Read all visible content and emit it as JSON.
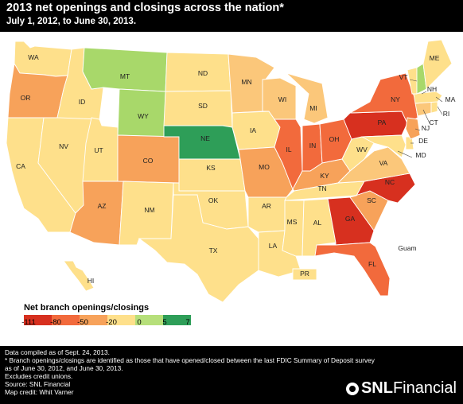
{
  "title": "2013 net openings and closings across the nation*",
  "subtitle": "July 1, 2012, to June 30, 2013.",
  "legend": {
    "title": "Net branch openings/closings",
    "ticks": [
      "-111",
      "-80",
      "-50",
      "-20",
      "0",
      "5",
      "7"
    ],
    "colors": [
      "#d7301f",
      "#f26a3c",
      "#f7a25a",
      "#fee08b",
      "#b6df7a",
      "#2e9e58"
    ]
  },
  "colors": {
    "dark_red": "#d7301f",
    "red_orange": "#f26a3c",
    "orange": "#f7a25a",
    "light_orange": "#fbc77a",
    "yellow": "#fee08b",
    "light_green": "#a8d86a",
    "green": "#2e9e58",
    "border": "#ffffff"
  },
  "states": {
    "WA": "WA",
    "OR": "OR",
    "CA": "CA",
    "NV": "NV",
    "ID": "ID",
    "MT": "MT",
    "WY": "WY",
    "UT": "UT",
    "AZ": "AZ",
    "CO": "CO",
    "NM": "NM",
    "ND": "ND",
    "SD": "SD",
    "NE": "NE",
    "KS": "KS",
    "OK": "OK",
    "TX": "TX",
    "MN": "MN",
    "IA": "IA",
    "MO": "MO",
    "AR": "AR",
    "LA": "LA",
    "WI": "WI",
    "IL": "IL",
    "MI": "MI",
    "IN": "IN",
    "OH": "OH",
    "KY": "KY",
    "TN": "TN",
    "MS": "MS",
    "AL": "AL",
    "GA": "GA",
    "FL": "FL",
    "SC": "SC",
    "NC": "NC",
    "VA": "VA",
    "WV": "WV",
    "PA": "PA",
    "NY": "NY",
    "VT": "VT",
    "NH": "NH",
    "ME": "ME",
    "MA": "MA",
    "RI": "RI",
    "CT": "CT",
    "NJ": "NJ",
    "DE": "DE",
    "MD": "MD",
    "HI": "HI",
    "PR": "PR",
    "Guam": "Guam"
  },
  "footer": {
    "line1": "Data compiled as of Sept. 24, 2013.",
    "line2": "* Branch openings/closings are identified as those that have opened/closed between the last FDIC Summary of Deposit survey",
    "line3": "as of June 30, 2012, and June 30, 2013.",
    "line4": "Excludes credit unions.",
    "line5": "Source: SNL Financial",
    "line6": "Map credit: Whit Varner"
  },
  "logo": {
    "snl": "SNL",
    "financial": "Financial"
  }
}
